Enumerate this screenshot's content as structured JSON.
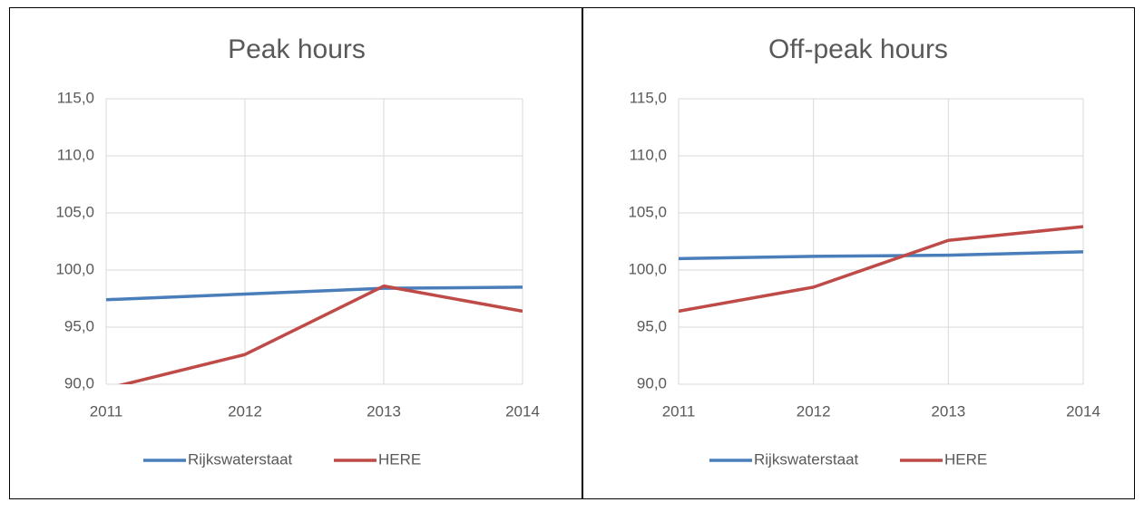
{
  "chart_data": [
    {
      "type": "line",
      "title": "Peak hours",
      "categories": [
        "2011",
        "2012",
        "2013",
        "2014"
      ],
      "series": [
        {
          "name": "Rijkswaterstaat",
          "color": "#4a7ebb",
          "values": [
            97.4,
            97.9,
            98.4,
            98.5
          ]
        },
        {
          "name": "HERE",
          "color": "#be4b48",
          "values": [
            89.6,
            92.6,
            98.6,
            96.4
          ]
        }
      ],
      "ylim": [
        90,
        115
      ],
      "yticks": [
        {
          "value": 90,
          "label": "90,0"
        },
        {
          "value": 95,
          "label": "95,0"
        },
        {
          "value": 100,
          "label": "100,0"
        },
        {
          "value": 105,
          "label": "105,0"
        },
        {
          "value": 110,
          "label": "110,0"
        },
        {
          "value": 115,
          "label": "115,0"
        }
      ],
      "grid": true,
      "legend": "bottom"
    },
    {
      "type": "line",
      "title": "Off-peak hours",
      "categories": [
        "2011",
        "2012",
        "2013",
        "2014"
      ],
      "series": [
        {
          "name": "Rijkswaterstaat",
          "color": "#4a7ebb",
          "values": [
            101.0,
            101.2,
            101.3,
            101.6
          ]
        },
        {
          "name": "HERE",
          "color": "#be4b48",
          "values": [
            96.4,
            98.5,
            102.6,
            103.8
          ]
        }
      ],
      "ylim": [
        90,
        115
      ],
      "yticks": [
        {
          "value": 90,
          "label": "90,0"
        },
        {
          "value": 95,
          "label": "95,0"
        },
        {
          "value": 100,
          "label": "100,0"
        },
        {
          "value": 105,
          "label": "105,0"
        },
        {
          "value": 110,
          "label": "110,0"
        },
        {
          "value": 115,
          "label": "115,0"
        }
      ],
      "grid": true,
      "legend": "bottom"
    }
  ]
}
